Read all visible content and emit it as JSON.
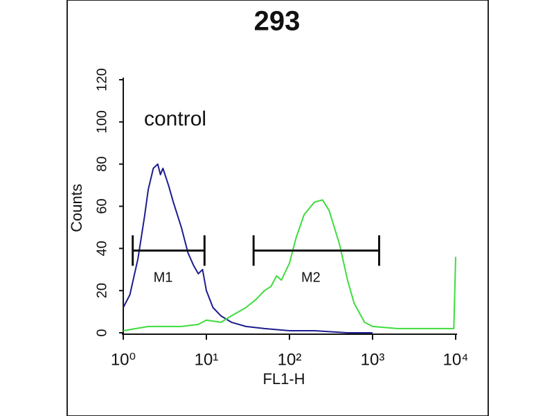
{
  "chart_data": {
    "type": "line",
    "title": "293",
    "annotation": "control",
    "x_label": "FL1-H",
    "y_label": "Counts",
    "xscale": "log",
    "xlim": [
      1,
      10000
    ],
    "xticks": [
      {
        "value": 1,
        "label": "10⁰"
      },
      {
        "value": 10,
        "label": "10¹"
      },
      {
        "value": 100,
        "label": "10²"
      },
      {
        "value": 1000,
        "label": "10³"
      },
      {
        "value": 10000,
        "label": "10⁴"
      }
    ],
    "ylim": [
      0,
      120
    ],
    "yticks": [
      0,
      20,
      40,
      60,
      80,
      100,
      120
    ],
    "series": [
      {
        "color": "#1c1c8e",
        "x": [
          1,
          1.2,
          1.5,
          1.8,
          2,
          2.3,
          2.6,
          2.8,
          3,
          3.5,
          4,
          5,
          6,
          7,
          8,
          9,
          10,
          12,
          15,
          20,
          30,
          50,
          100,
          200,
          500,
          1000
        ],
        "values": [
          12,
          18,
          35,
          55,
          68,
          78,
          80,
          75,
          78,
          70,
          62,
          50,
          38,
          32,
          28,
          30,
          20,
          12,
          8,
          5,
          3,
          2,
          1,
          1,
          0,
          0
        ]
      },
      {
        "color": "#3ddc3d",
        "x": [
          1,
          2,
          5,
          8,
          10,
          15,
          20,
          30,
          40,
          50,
          60,
          70,
          80,
          100,
          120,
          150,
          200,
          250,
          300,
          400,
          500,
          600,
          800,
          1000,
          2000,
          5000,
          9500,
          10000
        ],
        "values": [
          1,
          3,
          3,
          4,
          6,
          5,
          8,
          12,
          16,
          20,
          22,
          27,
          25,
          33,
          45,
          56,
          62,
          63,
          58,
          42,
          25,
          14,
          5,
          3,
          2,
          2,
          2,
          36
        ]
      }
    ],
    "markers": [
      {
        "label": "M1",
        "range": [
          1.3,
          9.5
        ],
        "y": 39
      },
      {
        "label": "M2",
        "range": [
          37,
          1200
        ],
        "y": 39
      }
    ]
  }
}
